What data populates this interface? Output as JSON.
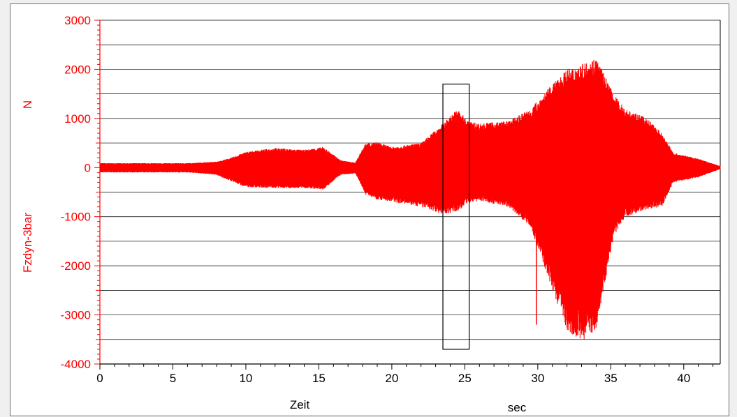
{
  "chart_data": {
    "type": "line",
    "ylabel": "Fzdyn-3bar",
    "yunit": "N",
    "xlabel": "Zeit",
    "xunit": "sec",
    "xlim": [
      0,
      42.5
    ],
    "ylim": [
      -4000,
      3000
    ],
    "yticks": [
      "3000",
      "2000",
      "1000",
      "0",
      "-1000",
      "-2000",
      "-3000",
      "-4000"
    ],
    "xticks": [
      "0",
      "5",
      "10",
      "15",
      "20",
      "25",
      "30",
      "35",
      "40"
    ],
    "grid": "horizontal",
    "colors": {
      "signal": "#ff0000",
      "yaxis": "#ff0000",
      "xaxis": "#000000",
      "grid": "#000000"
    },
    "highlight_box": {
      "x": [
        23.5,
        25.3
      ],
      "y": [
        -3700,
        1700
      ]
    },
    "envelope": {
      "t": [
        0,
        3,
        6,
        8,
        9,
        10,
        12,
        14,
        15.3,
        16.5,
        17.5,
        18.2,
        19,
        20,
        22,
        23.5,
        24.5,
        25.2,
        26,
        28,
        29.5,
        31,
        32,
        33,
        34,
        35.2,
        36,
        37.5,
        38.5,
        39.3,
        41,
        42.5
      ],
      "upper": [
        90,
        90,
        90,
        120,
        200,
        320,
        400,
        360,
        420,
        150,
        100,
        500,
        520,
        420,
        500,
        900,
        1200,
        950,
        900,
        950,
        1200,
        1700,
        2000,
        2100,
        2250,
        1500,
        1200,
        1000,
        700,
        300,
        180,
        30
      ],
      "lower": [
        -100,
        -100,
        -100,
        -150,
        -280,
        -400,
        -420,
        -420,
        -450,
        -150,
        -120,
        -550,
        -650,
        -700,
        -800,
        -950,
        -900,
        -720,
        -680,
        -800,
        -1200,
        -2500,
        -3300,
        -3550,
        -3300,
        -1400,
        -1000,
        -850,
        -800,
        -300,
        -200,
        -30
      ]
    },
    "spike": {
      "x": 29.9,
      "y": [
        -3200,
        -50
      ]
    }
  }
}
